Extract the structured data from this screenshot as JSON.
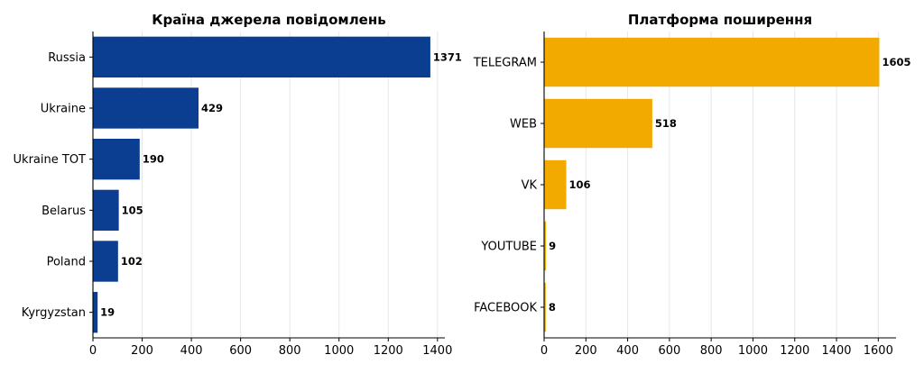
{
  "chart_data": [
    {
      "type": "bar",
      "orientation": "horizontal",
      "title": "Країна джерела повідомлень",
      "categories": [
        "Russia",
        "Ukraine",
        "Ukraine TOT",
        "Belarus",
        "Poland",
        "Kyrgyzstan"
      ],
      "values": [
        1371,
        429,
        190,
        105,
        102,
        19
      ],
      "xlim": [
        0,
        1430
      ],
      "xticks": [
        0,
        200,
        400,
        600,
        800,
        1000,
        1200,
        1400
      ],
      "bar_color": "#0b3d91",
      "grid": "vertical",
      "xlabel": "",
      "ylabel": ""
    },
    {
      "type": "bar",
      "orientation": "horizontal",
      "title": "Платформа поширення",
      "categories": [
        "TELEGRAM",
        "WEB",
        "VK",
        "YOUTUBE",
        "FACEBOOK"
      ],
      "values": [
        1605,
        518,
        106,
        9,
        8
      ],
      "xlim": [
        0,
        1685
      ],
      "xticks": [
        0,
        200,
        400,
        600,
        800,
        1000,
        1200,
        1400,
        1600
      ],
      "bar_color": "#f2a900",
      "grid": "vertical",
      "xlabel": "",
      "ylabel": ""
    }
  ]
}
